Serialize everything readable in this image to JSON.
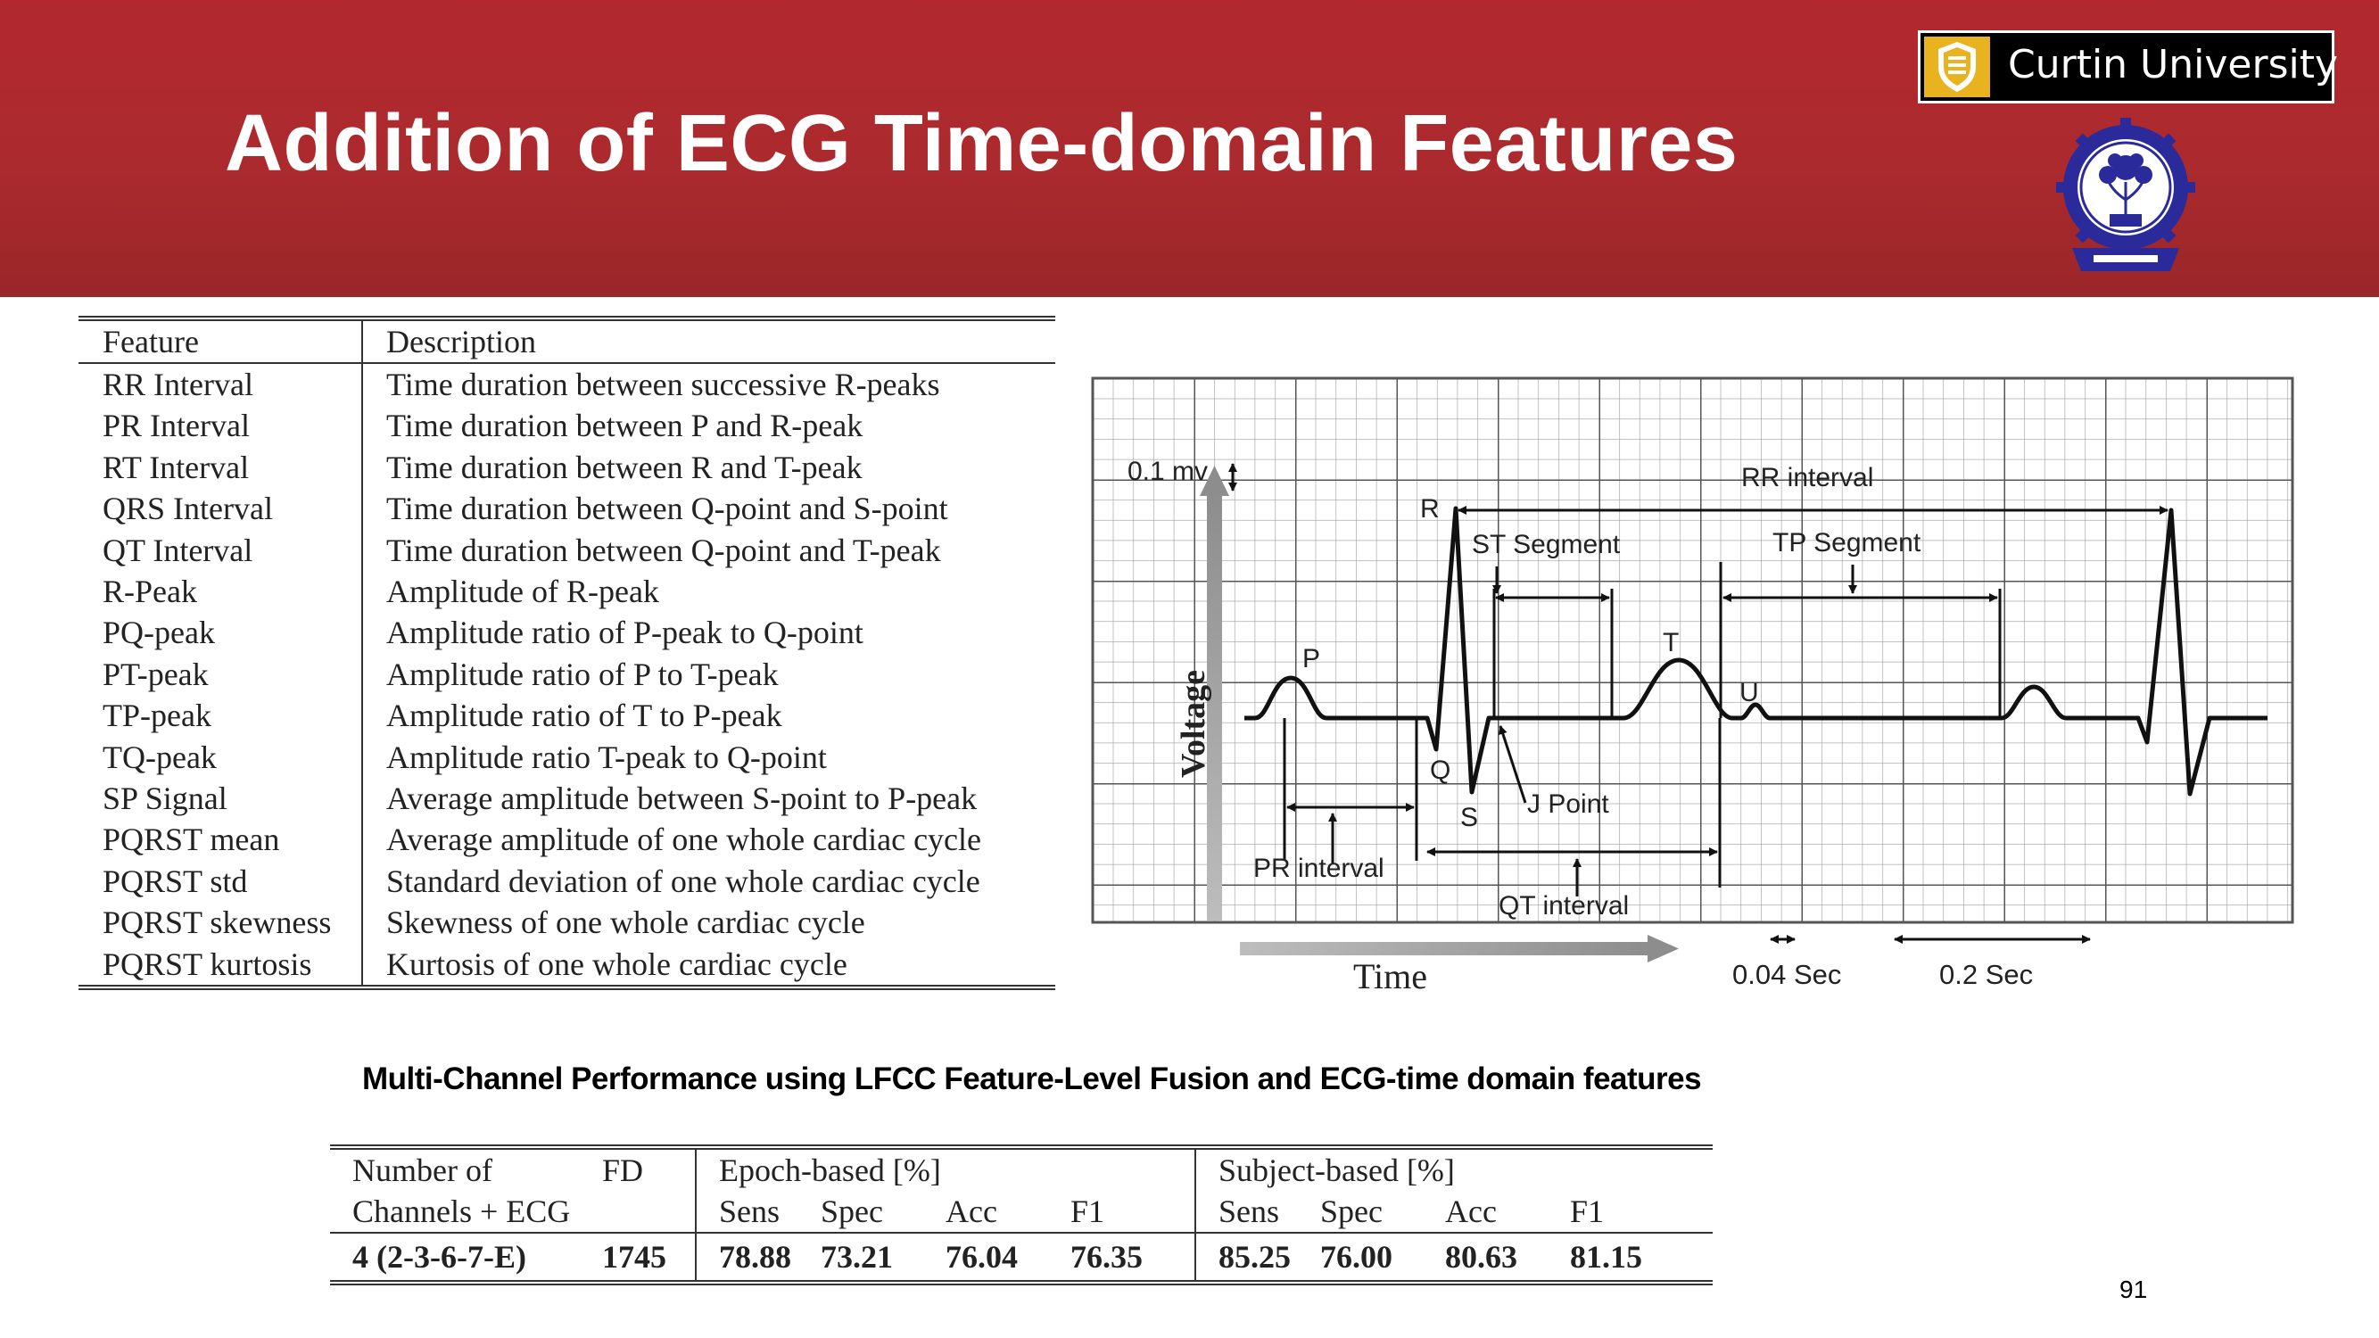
{
  "slide": {
    "title": "Addition of ECG Time-domain Features",
    "page_number": "91",
    "header_color": "#b3282f"
  },
  "logo": {
    "name": "Curtin University",
    "accent_color": "#e9b21f"
  },
  "feature_table": {
    "headers": [
      "Feature",
      "Description"
    ],
    "rows": [
      [
        "RR Interval",
        "Time duration between successive R-peaks"
      ],
      [
        "PR Interval",
        "Time duration between P and R-peak"
      ],
      [
        "RT Interval",
        "Time duration between R and T-peak"
      ],
      [
        "QRS Interval",
        "Time duration between Q-point and S-point"
      ],
      [
        "QT Interval",
        "Time duration between Q-point and T-peak"
      ],
      [
        "R-Peak",
        "Amplitude of R-peak"
      ],
      [
        "PQ-peak",
        "Amplitude ratio of P-peak to Q-point"
      ],
      [
        "PT-peak",
        "Amplitude ratio of P to T-peak"
      ],
      [
        "TP-peak",
        "Amplitude ratio of T to P-peak"
      ],
      [
        "TQ-peak",
        "Amplitude ratio T-peak to Q-point"
      ],
      [
        "SP Signal",
        "Average amplitude between S-point to P-peak"
      ],
      [
        "PQRST mean",
        "Average amplitude of one whole cardiac cycle"
      ],
      [
        "PQRST std",
        "Standard deviation of one whole cardiac cycle"
      ],
      [
        "PQRST skewness",
        "Skewness of one whole cardiac cycle"
      ],
      [
        "PQRST kurtosis",
        "Kurtosis of one whole cardiac cycle"
      ]
    ]
  },
  "ecg_diagram": {
    "voltage_label": "Voltage",
    "time_label": "Time",
    "scale_voltage": "0.1 mv",
    "scale_small": "0.04 Sec",
    "scale_large": "0.2 Sec",
    "wave_labels": {
      "P": "P",
      "Q": "Q",
      "R": "R",
      "S": "S",
      "T": "T",
      "U": "U"
    },
    "interval_labels": {
      "rr": "RR interval",
      "st": "ST Segment",
      "tp": "TP Segment",
      "j": "J Point",
      "pr": "PR interval",
      "qt": "QT interval"
    }
  },
  "performance": {
    "subtitle": "Multi-Channel Performance using LFCC Feature-Level Fusion and ECG-time domain features",
    "col_channels_1": "Number of",
    "col_channels_2": "Channels + ECG",
    "col_fd": "FD",
    "group_epoch": "Epoch-based [%]",
    "group_subject": "Subject-based [%]",
    "metrics": [
      "Sens",
      "Spec",
      "Acc",
      "F1"
    ],
    "row": {
      "channels": "4 (2-3-6-7-E)",
      "fd": "1745",
      "epoch": [
        "78.88",
        "73.21",
        "76.04",
        "76.35"
      ],
      "subject": [
        "85.25",
        "76.00",
        "80.63",
        "81.15"
      ]
    }
  }
}
